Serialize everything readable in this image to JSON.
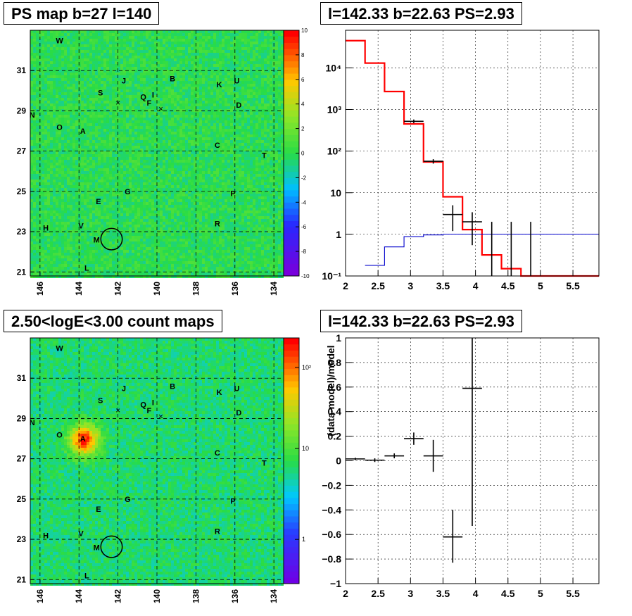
{
  "panels": {
    "ps_map_title": "PS map b=27 l=140",
    "count_map_title": "2.50<logE<3.00 count maps",
    "spectrum_title": "l=142.33 b=22.63 PS=2.93",
    "residual_title": "l=142.33 b=22.63 PS=2.93"
  },
  "colors": {
    "map_background": "#33dd44",
    "model": "#ff0000",
    "background_model": "#0000cc",
    "data": "#000000",
    "grid": "#000000"
  },
  "chart_data": [
    {
      "id": "ps_map",
      "type": "heatmap",
      "title": "PS map b=27 l=140",
      "x_axis": {
        "range": [
          146.5,
          133.5
        ],
        "reversed": true,
        "ticks": [
          "146",
          "144",
          "142",
          "140",
          "138",
          "136",
          "134"
        ]
      },
      "y_axis": {
        "range": [
          20.8,
          33.0
        ],
        "ticks": [
          "21",
          "23",
          "25",
          "27",
          "29",
          "31"
        ]
      },
      "color_scale": {
        "range": [
          -10,
          10
        ],
        "ticks": [
          "-10",
          "-8",
          "-6",
          "-4",
          "-2",
          "0",
          "2",
          "4",
          "6",
          "8",
          "10"
        ]
      },
      "grid": true,
      "source_labels": [
        {
          "name": "W",
          "l": 145.0,
          "b": 32.5
        },
        {
          "name": "J",
          "l": 141.7,
          "b": 30.5
        },
        {
          "name": "B",
          "l": 139.2,
          "b": 30.6
        },
        {
          "name": "K",
          "l": 136.8,
          "b": 30.3
        },
        {
          "name": "U",
          "l": 135.9,
          "b": 30.5
        },
        {
          "name": "S",
          "l": 142.9,
          "b": 29.9
        },
        {
          "name": "Q",
          "l": 140.7,
          "b": 29.7
        },
        {
          "name": "I",
          "l": 140.2,
          "b": 29.8
        },
        {
          "name": "F",
          "l": 140.4,
          "b": 29.4
        },
        {
          "name": "D",
          "l": 135.8,
          "b": 29.3
        },
        {
          "name": "N",
          "l": 146.4,
          "b": 28.8
        },
        {
          "name": "O",
          "l": 145.0,
          "b": 28.2
        },
        {
          "name": "A",
          "l": 143.8,
          "b": 28.0
        },
        {
          "name": "C",
          "l": 136.9,
          "b": 27.3
        },
        {
          "name": "T",
          "l": 134.5,
          "b": 26.8
        },
        {
          "name": "G",
          "l": 141.5,
          "b": 25.0
        },
        {
          "name": "E",
          "l": 143.0,
          "b": 24.5
        },
        {
          "name": "P",
          "l": 136.1,
          "b": 24.9
        },
        {
          "name": "H",
          "l": 145.7,
          "b": 23.2
        },
        {
          "name": "V",
          "l": 143.9,
          "b": 23.3
        },
        {
          "name": "R",
          "l": 136.9,
          "b": 23.4
        },
        {
          "name": "M",
          "l": 143.1,
          "b": 22.6
        },
        {
          "name": "L",
          "l": 143.6,
          "b": 21.2
        }
      ],
      "markers_x": [
        {
          "l": 142.0,
          "b": 29.4
        },
        {
          "l": 139.8,
          "b": 29.1
        }
      ],
      "circle": {
        "l": 142.33,
        "b": 22.63,
        "r": 0.55
      }
    },
    {
      "id": "count_map",
      "type": "heatmap",
      "title": "2.50<logE<3.00 count maps",
      "x_axis": {
        "range": [
          146.5,
          133.5
        ],
        "reversed": true,
        "ticks": [
          "146",
          "144",
          "142",
          "140",
          "138",
          "136",
          "134"
        ]
      },
      "y_axis": {
        "range": [
          20.8,
          33.0
        ],
        "ticks": [
          "21",
          "23",
          "25",
          "27",
          "29",
          "31"
        ]
      },
      "color_scale": {
        "log": true,
        "ticks": [
          "1",
          "10",
          "10²"
        ]
      },
      "grid": true,
      "hotspot": {
        "l": 143.8,
        "b": 28.0,
        "label": "A"
      },
      "circle": {
        "l": 142.33,
        "b": 22.63,
        "r": 0.55
      }
    },
    {
      "id": "spectrum",
      "type": "line",
      "title": "l=142.33 b=22.63 PS=2.93",
      "x_axis": {
        "range": [
          2.0,
          5.9
        ],
        "ticks": [
          "2",
          "2.5",
          "3",
          "3.5",
          "4",
          "4.5",
          "5",
          "5.5"
        ]
      },
      "y_axis": {
        "log": true,
        "range": [
          0.1,
          80000
        ],
        "ticks": [
          "10⁻¹",
          "1",
          "10",
          "10²",
          "10³",
          "10⁴"
        ]
      },
      "grid": true,
      "series": [
        {
          "role": "model",
          "edges": [
            2.0,
            2.3,
            2.6,
            2.9,
            3.2,
            3.5,
            3.8,
            4.1,
            4.4,
            4.7,
            5.0,
            5.9
          ],
          "values": [
            45000,
            13000,
            2700,
            450,
            55,
            8,
            1.3,
            0.32,
            0.15,
            0.1,
            0.1
          ]
        },
        {
          "role": "background",
          "edges": [
            2.3,
            2.6,
            2.9,
            3.2,
            3.5,
            3.8,
            4.1,
            4.4,
            4.7,
            5.0,
            5.9
          ],
          "values": [
            0.18,
            0.5,
            0.88,
            0.97,
            1.0,
            1.0,
            1.0,
            1.0,
            1.0,
            1.0
          ]
        },
        {
          "role": "data",
          "points": [
            {
              "x": 3.05,
              "y": 520,
              "xerr": 0.15,
              "ylo": 470,
              "yhi": 575
            },
            {
              "x": 3.35,
              "y": 57,
              "xerr": 0.15,
              "ylo": 50,
              "yhi": 64
            },
            {
              "x": 3.65,
              "y": 3,
              "xerr": 0.15,
              "ylo": 1.2,
              "yhi": 5
            },
            {
              "x": 3.95,
              "y": 2,
              "xerr": 0.15,
              "ylo": 0.55,
              "yhi": 3.4
            },
            {
              "x": 4.25,
              "y": 0.1,
              "xerr": 0,
              "ylo": 0.1,
              "yhi": 2
            },
            {
              "x": 4.55,
              "y": 0.1,
              "xerr": 0,
              "ylo": 0.1,
              "yhi": 2
            },
            {
              "x": 4.85,
              "y": 0.1,
              "xerr": 0,
              "ylo": 0.1,
              "yhi": 2
            }
          ]
        }
      ]
    },
    {
      "id": "residuals",
      "type": "scatter",
      "title": "l=142.33 b=22.63 PS=2.93",
      "ylabel": "(data-model)/model",
      "x_axis": {
        "range": [
          2.0,
          5.9
        ],
        "ticks": [
          "2",
          "2.5",
          "3",
          "3.5",
          "4",
          "4.5",
          "5",
          "5.5"
        ]
      },
      "y_axis": {
        "range": [
          -1,
          1
        ],
        "ticks": [
          "−1",
          "−0.8",
          "−0.6",
          "−0.4",
          "−0.2",
          "0",
          "0.2",
          "0.4",
          "0.6",
          "0.8",
          "1"
        ]
      },
      "grid": true,
      "points": [
        {
          "x": 2.15,
          "y": 0.015,
          "xerr": 0.15,
          "ylo": 0.005,
          "yhi": 0.025
        },
        {
          "x": 2.45,
          "y": 0.005,
          "xerr": 0.15,
          "ylo": -0.01,
          "yhi": 0.02
        },
        {
          "x": 2.75,
          "y": 0.04,
          "xerr": 0.15,
          "ylo": 0.02,
          "yhi": 0.06
        },
        {
          "x": 3.05,
          "y": 0.18,
          "xerr": 0.15,
          "ylo": 0.13,
          "yhi": 0.23
        },
        {
          "x": 3.35,
          "y": 0.04,
          "xerr": 0.15,
          "ylo": -0.09,
          "yhi": 0.17
        },
        {
          "x": 3.65,
          "y": -0.62,
          "xerr": 0.15,
          "ylo": -0.83,
          "yhi": -0.4
        },
        {
          "x": 3.95,
          "y": 0.59,
          "xerr": 0.15,
          "ylo": -0.53,
          "yhi": 1.0
        }
      ]
    }
  ]
}
